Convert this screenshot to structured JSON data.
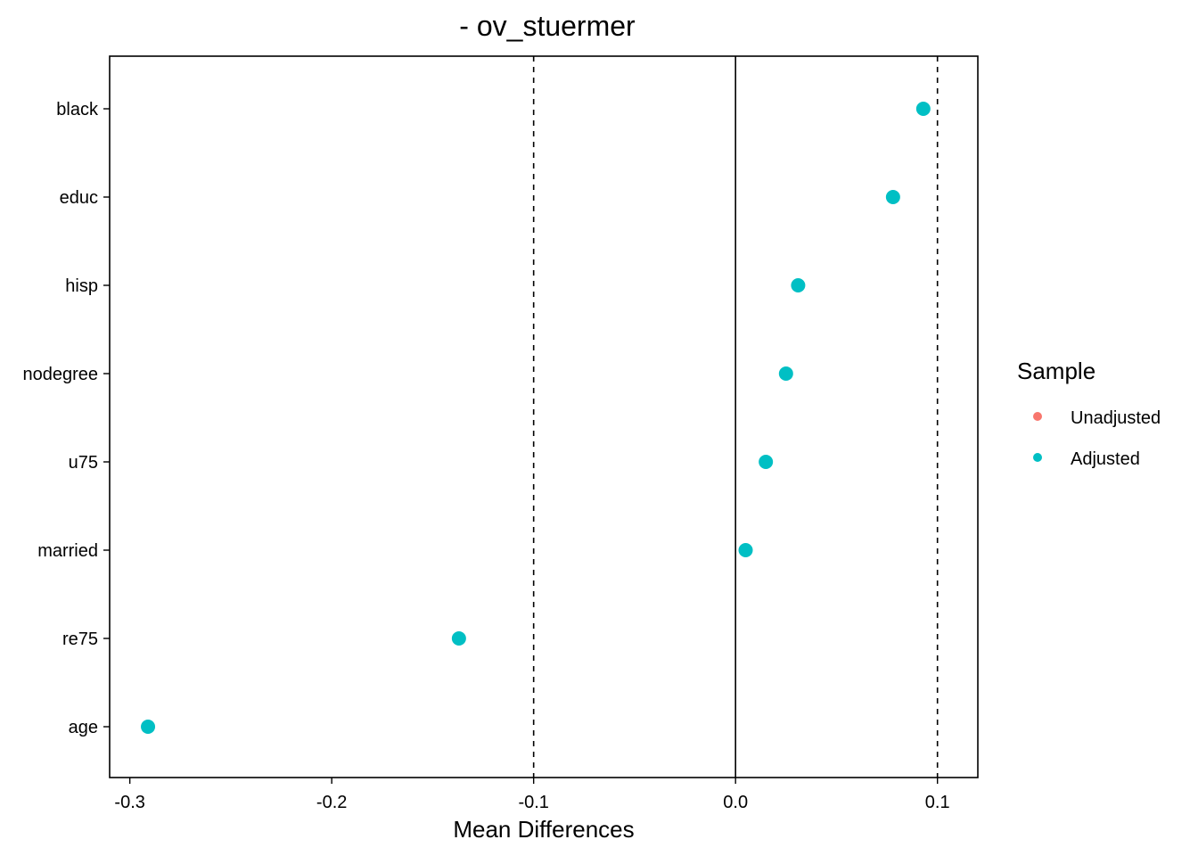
{
  "chart_data": {
    "type": "scatter",
    "title": "- ov_stuermer",
    "xlabel": "Mean Differences",
    "ylabel": "",
    "xlim": [
      -0.31,
      0.12
    ],
    "xticks": [
      -0.3,
      -0.2,
      -0.1,
      0.0,
      0.1
    ],
    "xtick_labels": [
      "-0.3",
      "-0.2",
      "-0.1",
      "0.0",
      "0.1"
    ],
    "categories": [
      "black",
      "educ",
      "hisp",
      "nodegree",
      "u75",
      "married",
      "re75",
      "age"
    ],
    "reference_lines": {
      "solid": [
        0.0
      ],
      "dashed": [
        -0.1,
        0.1
      ]
    },
    "grid": false,
    "legend": {
      "title": "Sample",
      "placement": "right",
      "entries": [
        {
          "label": "Unadjusted",
          "color": "#F8766D"
        },
        {
          "label": "Adjusted",
          "color": "#00BFC4"
        }
      ]
    },
    "series": [
      {
        "name": "Adjusted",
        "color": "#00BFC4",
        "points": [
          {
            "category": "black",
            "value": 0.093
          },
          {
            "category": "educ",
            "value": 0.078
          },
          {
            "category": "hisp",
            "value": 0.031
          },
          {
            "category": "nodegree",
            "value": 0.025
          },
          {
            "category": "u75",
            "value": 0.015
          },
          {
            "category": "married",
            "value": 0.005
          },
          {
            "category": "re75",
            "value": -0.137
          },
          {
            "category": "age",
            "value": -0.291
          }
        ]
      }
    ]
  }
}
